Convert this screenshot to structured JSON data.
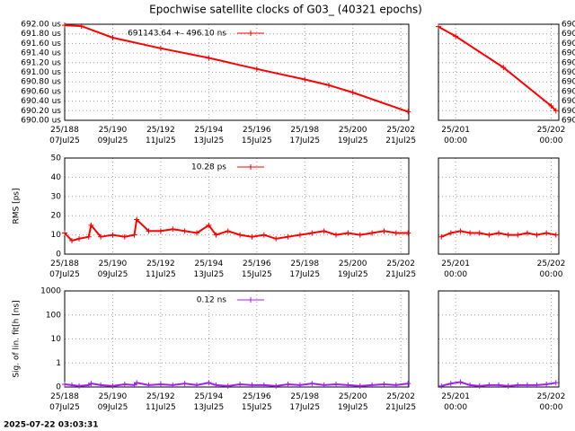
{
  "title": "Epochwise satellite clocks of G03_ (40321 epochs)",
  "timestamp": "2025-07-22 03:03:31",
  "chart_data": [
    {
      "type": "line",
      "legend": "upper left",
      "x": [
        188.0,
        188.7,
        190,
        192,
        194,
        196,
        198,
        199,
        200,
        202.3
      ],
      "series": [
        {
          "name": "691143.64 +-      496.10 ns",
          "color": "#ff0000",
          "values": [
            691.98,
            691.96,
            691.72,
            691.5,
            691.3,
            691.07,
            690.85,
            690.73,
            690.58,
            690.18
          ]
        }
      ],
      "xlim": [
        188,
        202.33
      ],
      "xticks": [
        {
          "value": 188,
          "label": "25/188\n07Jul25"
        },
        {
          "value": 190,
          "label": "25/190\n09Jul25"
        },
        {
          "value": 192,
          "label": "25/192\n11Jul25"
        },
        {
          "value": 194,
          "label": "25/194\n13Jul25"
        },
        {
          "value": 196,
          "label": "25/196\n15Jul25"
        },
        {
          "value": 198,
          "label": "25/198\n17Jul25"
        },
        {
          "value": 200,
          "label": "25/200\n19Jul25"
        },
        {
          "value": 202,
          "label": "25/202\n21Jul25"
        }
      ],
      "ylim": [
        690,
        692
      ],
      "yticks": [
        {
          "value": 690,
          "label": "690.00 us"
        },
        {
          "value": 690.2,
          "label": "690.20 us"
        },
        {
          "value": 690.4,
          "label": "690.40 us"
        },
        {
          "value": 690.6,
          "label": "690.60 us"
        },
        {
          "value": 690.8,
          "label": "690.80 us"
        },
        {
          "value": 691,
          "label": "691.00 us"
        },
        {
          "value": 691.2,
          "label": "691.20 us"
        },
        {
          "value": 691.4,
          "label": "691.40 us"
        },
        {
          "value": 691.6,
          "label": "691.60 us"
        },
        {
          "value": 691.8,
          "label": "691.80 us"
        },
        {
          "value": 692,
          "label": "692.00 us"
        }
      ],
      "grid": true
    },
    {
      "type": "line",
      "yaxis_side": "right",
      "x": [
        200.82,
        201,
        201.5,
        202,
        202.05
      ],
      "series": [
        {
          "color": "#ff0000",
          "values": [
            691.95,
            691.75,
            691.1,
            690.3,
            690.2
          ]
        }
      ],
      "xlim": [
        200.82,
        202.08
      ],
      "xticks": [
        {
          "value": 201,
          "label": "25/201\n00:00"
        },
        {
          "value": 202,
          "label": "25/202\n00:00"
        }
      ],
      "ylim": [
        690,
        692
      ],
      "yticks": [
        {
          "value": 690,
          "label": "690"
        },
        {
          "value": 690.2,
          "label": "690"
        },
        {
          "value": 690.4,
          "label": "690"
        },
        {
          "value": 690.6,
          "label": "690"
        },
        {
          "value": 690.8,
          "label": "690"
        },
        {
          "value": 691,
          "label": "690"
        },
        {
          "value": 691.2,
          "label": "690"
        },
        {
          "value": 691.4,
          "label": "690"
        },
        {
          "value": 691.6,
          "label": "690"
        },
        {
          "value": 691.8,
          "label": "690"
        },
        {
          "value": 692,
          "label": "690"
        }
      ],
      "grid": true
    },
    {
      "type": "line",
      "legend": "upper left",
      "ylabel": "RMS [ps]",
      "x": [
        188.0,
        188.3,
        188.6,
        189.0,
        189.1,
        189.5,
        190.0,
        190.5,
        190.9,
        191.0,
        191.5,
        192.0,
        192.5,
        193.0,
        193.5,
        194.0,
        194.3,
        194.8,
        195.3,
        195.8,
        196.3,
        196.8,
        197.3,
        197.8,
        198.3,
        198.8,
        199.3,
        199.8,
        200.3,
        200.8,
        201.3,
        201.8,
        202.3
      ],
      "series": [
        {
          "name": "10.28 ps",
          "color": "#ff0000",
          "values": [
            11,
            7,
            8,
            9,
            15,
            9,
            10,
            9,
            10,
            18,
            12,
            12,
            13,
            12,
            11,
            15,
            10,
            12,
            10,
            9,
            10,
            8,
            9,
            10,
            11,
            12,
            10,
            11,
            10,
            11,
            12,
            11,
            11
          ]
        }
      ],
      "xlim": [
        188,
        202.33
      ],
      "xticks": [
        {
          "value": 188,
          "label": "25/188\n07Jul25"
        },
        {
          "value": 190,
          "label": "25/190\n09Jul25"
        },
        {
          "value": 192,
          "label": "25/192\n11Jul25"
        },
        {
          "value": 194,
          "label": "25/194\n13Jul25"
        },
        {
          "value": 196,
          "label": "25/196\n15Jul25"
        },
        {
          "value": 198,
          "label": "25/198\n17Jul25"
        },
        {
          "value": 200,
          "label": "25/200\n19Jul25"
        },
        {
          "value": 202,
          "label": "25/202\n21Jul25"
        }
      ],
      "ylim": [
        0,
        50
      ],
      "yticks": [
        0,
        10,
        20,
        30,
        40,
        50
      ],
      "grid": true
    },
    {
      "type": "line",
      "yaxis_side": "none",
      "x": [
        200.85,
        200.95,
        201.05,
        201.15,
        201.25,
        201.35,
        201.45,
        201.55,
        201.65,
        201.75,
        201.85,
        201.95,
        202.05
      ],
      "series": [
        {
          "color": "#ff0000",
          "values": [
            9,
            11,
            12,
            11,
            11,
            10,
            11,
            10,
            10,
            11,
            10,
            11,
            10
          ]
        }
      ],
      "xlim": [
        200.82,
        202.08
      ],
      "xticks": [
        {
          "value": 201,
          "label": "25/201\n00:00"
        },
        {
          "value": 202,
          "label": "25/202\n00:00"
        }
      ],
      "ylim": [
        0,
        50
      ],
      "yticks": [
        0,
        10,
        20,
        30,
        40,
        50
      ],
      "grid": true
    },
    {
      "type": "line",
      "legend": "upper left",
      "ylabel": "Sig. of lin. fit[h [ns]",
      "log_y": true,
      "x": [
        188.0,
        188.3,
        188.6,
        189.0,
        189.1,
        189.5,
        190.0,
        190.5,
        190.9,
        191.0,
        191.5,
        192.0,
        192.5,
        193.0,
        193.5,
        194.0,
        194.3,
        194.8,
        195.3,
        195.8,
        196.3,
        196.8,
        197.3,
        197.8,
        198.3,
        198.8,
        199.3,
        199.8,
        200.3,
        200.8,
        201.3,
        201.8,
        202.3
      ],
      "series": [
        {
          "name": "0.12 ns",
          "color": "#a020f0",
          "values": [
            0.13,
            0.12,
            0.11,
            0.12,
            0.14,
            0.12,
            0.11,
            0.13,
            0.12,
            0.15,
            0.12,
            0.13,
            0.12,
            0.14,
            0.12,
            0.15,
            0.12,
            0.11,
            0.13,
            0.12,
            0.12,
            0.11,
            0.13,
            0.12,
            0.14,
            0.12,
            0.13,
            0.12,
            0.11,
            0.12,
            0.13,
            0.12,
            0.14
          ]
        }
      ],
      "xlim": [
        188,
        202.33
      ],
      "xticks": [
        {
          "value": 188,
          "label": "25/188\n07Jul25"
        },
        {
          "value": 190,
          "label": "25/190\n09Jul25"
        },
        {
          "value": 192,
          "label": "25/192\n11Jul25"
        },
        {
          "value": 194,
          "label": "25/194\n13Jul25"
        },
        {
          "value": 196,
          "label": "25/196\n15Jul25"
        },
        {
          "value": 198,
          "label": "25/198\n17Jul25"
        },
        {
          "value": 200,
          "label": "25/200\n19Jul25"
        },
        {
          "value": 202,
          "label": "25/202\n21Jul25"
        }
      ],
      "ylim": [
        0.1,
        1000
      ],
      "yticks": [
        {
          "value": 0.1,
          "label": "0"
        },
        1,
        10,
        100,
        1000
      ],
      "grid": true
    },
    {
      "type": "line",
      "yaxis_side": "none",
      "log_y": true,
      "x": [
        200.85,
        200.95,
        201.05,
        201.15,
        201.25,
        201.35,
        201.45,
        201.55,
        201.65,
        201.75,
        201.85,
        201.95,
        202.05
      ],
      "series": [
        {
          "color": "#a020f0",
          "values": [
            0.11,
            0.14,
            0.16,
            0.12,
            0.11,
            0.12,
            0.12,
            0.11,
            0.12,
            0.12,
            0.12,
            0.13,
            0.15
          ]
        }
      ],
      "xlim": [
        200.82,
        202.08
      ],
      "xticks": [
        {
          "value": 201,
          "label": "25/201\n00:00"
        },
        {
          "value": 202,
          "label": "25/202\n00:00"
        }
      ],
      "ylim": [
        0.1,
        1000
      ],
      "yticks": [
        {
          "value": 0.1,
          "label": "0"
        },
        1,
        10,
        100,
        1000
      ],
      "grid": true
    }
  ]
}
